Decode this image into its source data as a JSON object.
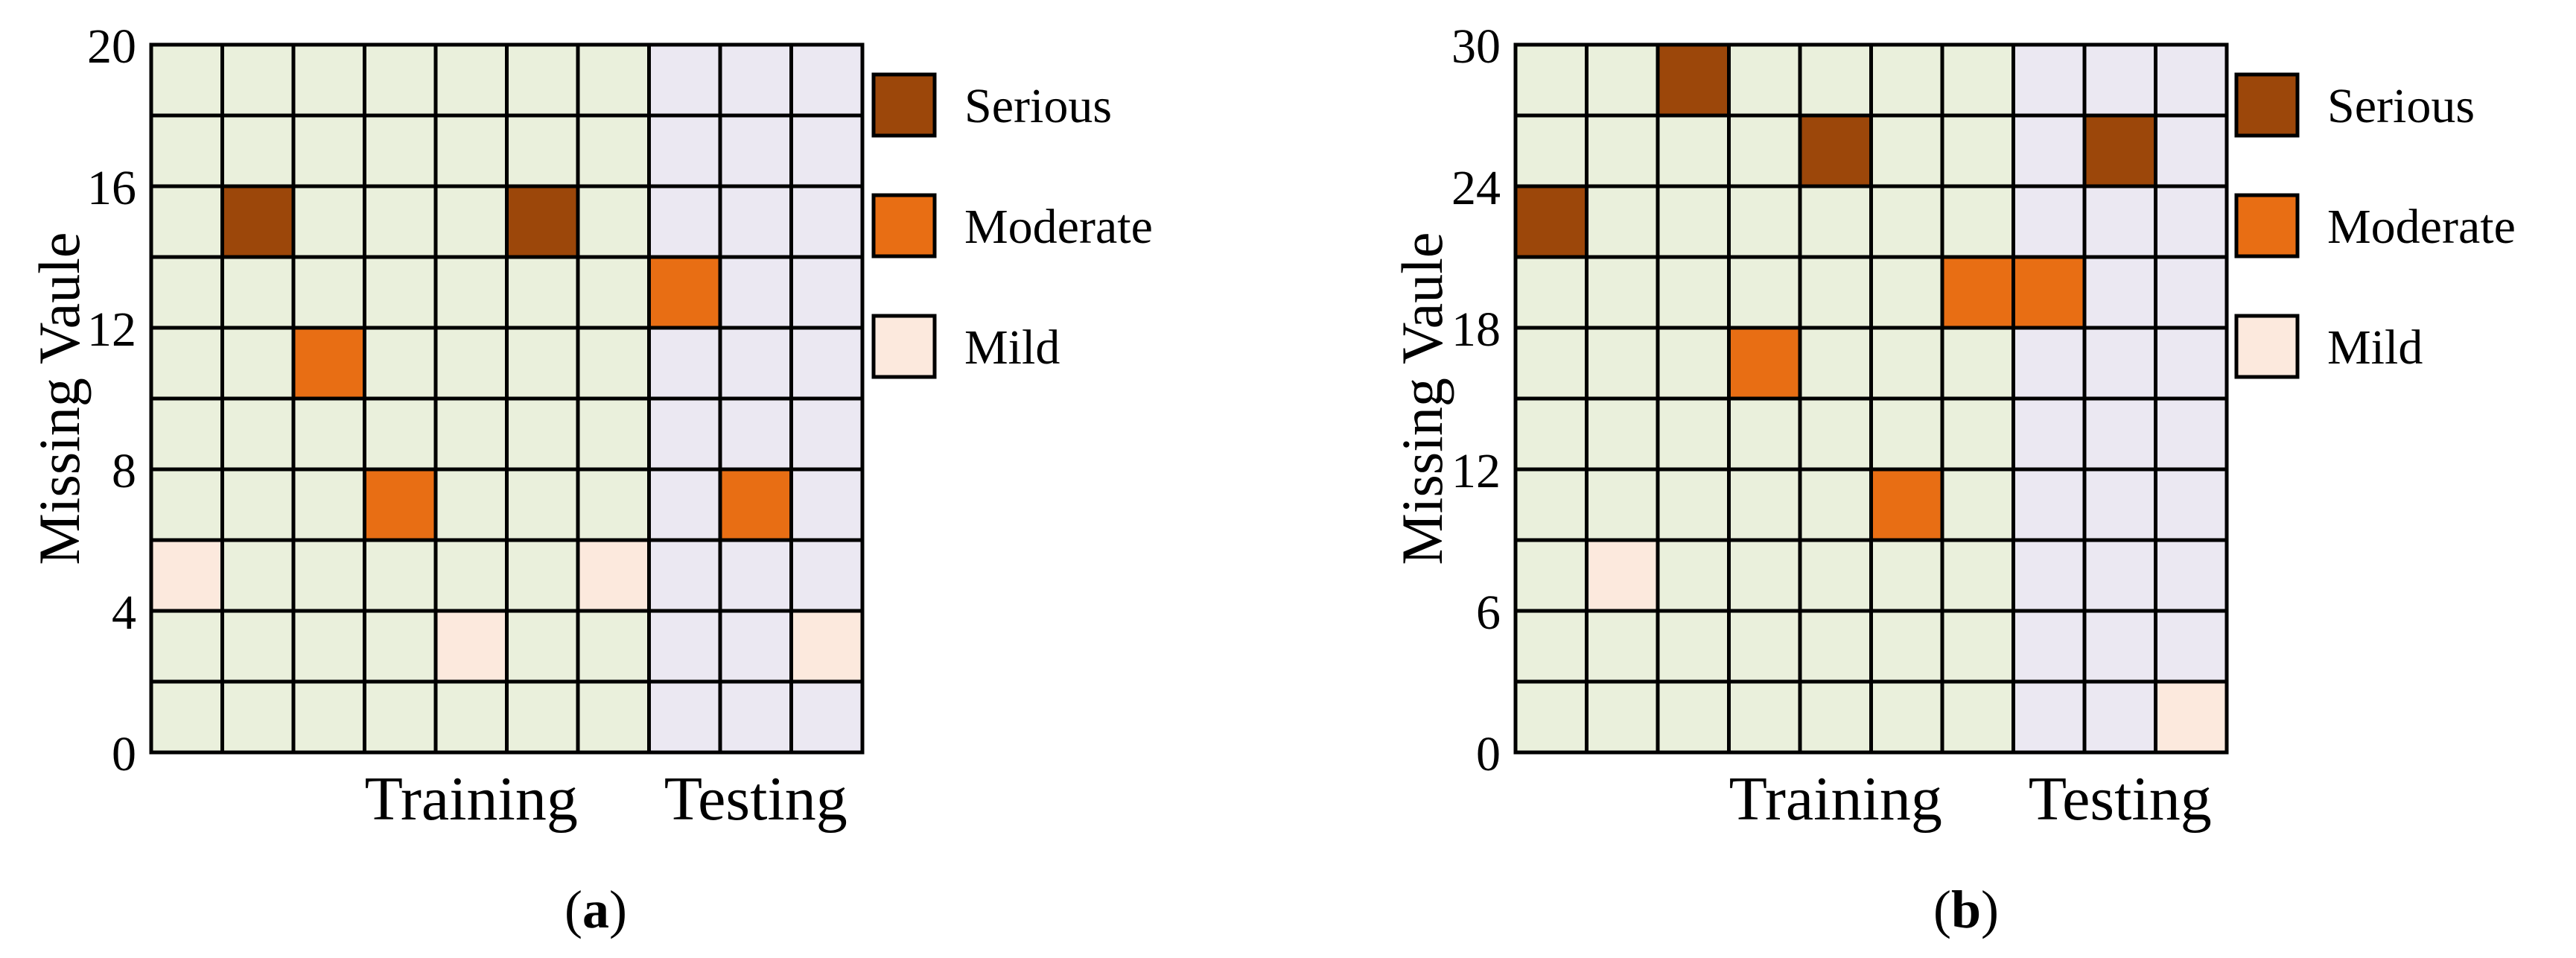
{
  "figure": {
    "panel_labels": [
      "a",
      "b"
    ]
  },
  "colors": {
    "training_cell": "#eaf0dc",
    "testing_cell": "#ebe8f2",
    "grid_line": "#000000",
    "serious": "#9c470a",
    "moderate": "#e86e14",
    "mild": "#fce9dd"
  },
  "chart_data": [
    {
      "type": "heatmap",
      "panel": "a",
      "ylabel": "Missing Vaule",
      "xlabel": "",
      "group_labels": [
        "Training",
        "Testing"
      ],
      "yticks": [
        0,
        4,
        8,
        12,
        16,
        20
      ],
      "ylim": [
        0,
        20
      ],
      "grid": {
        "columns": 10,
        "rows": 10,
        "training_columns": 7,
        "testing_columns": 3
      },
      "legend": {
        "placement": "right",
        "entries": [
          {
            "name": "Serious",
            "level": "serious"
          },
          {
            "name": "Moderate",
            "level": "moderate"
          },
          {
            "name": "Mild",
            "level": "mild"
          }
        ]
      },
      "highlighted_cells": [
        {
          "col": 1,
          "row": 7,
          "level": "serious"
        },
        {
          "col": 5,
          "row": 7,
          "level": "serious"
        },
        {
          "col": 7,
          "row": 6,
          "level": "moderate"
        },
        {
          "col": 2,
          "row": 5,
          "level": "moderate"
        },
        {
          "col": 3,
          "row": 3,
          "level": "moderate"
        },
        {
          "col": 8,
          "row": 3,
          "level": "moderate"
        },
        {
          "col": 0,
          "row": 2,
          "level": "mild"
        },
        {
          "col": 6,
          "row": 2,
          "level": "mild"
        },
        {
          "col": 4,
          "row": 1,
          "level": "mild"
        },
        {
          "col": 9,
          "row": 1,
          "level": "mild"
        }
      ]
    },
    {
      "type": "heatmap",
      "panel": "b",
      "ylabel": "Missing Vaule",
      "xlabel": "",
      "group_labels": [
        "Training",
        "Testing"
      ],
      "yticks": [
        0,
        6,
        12,
        18,
        24,
        30
      ],
      "ylim": [
        0,
        30
      ],
      "grid": {
        "columns": 10,
        "rows": 10,
        "training_columns": 7,
        "testing_columns": 3
      },
      "legend": {
        "placement": "right",
        "entries": [
          {
            "name": "Serious",
            "level": "serious"
          },
          {
            "name": "Moderate",
            "level": "moderate"
          },
          {
            "name": "Mild",
            "level": "mild"
          }
        ]
      },
      "highlighted_cells": [
        {
          "col": 2,
          "row": 9,
          "level": "serious"
        },
        {
          "col": 4,
          "row": 8,
          "level": "serious"
        },
        {
          "col": 8,
          "row": 8,
          "level": "serious"
        },
        {
          "col": 0,
          "row": 7,
          "level": "serious"
        },
        {
          "col": 6,
          "row": 6,
          "level": "moderate"
        },
        {
          "col": 7,
          "row": 6,
          "level": "moderate"
        },
        {
          "col": 3,
          "row": 5,
          "level": "moderate"
        },
        {
          "col": 5,
          "row": 3,
          "level": "moderate"
        },
        {
          "col": 1,
          "row": 2,
          "level": "mild"
        },
        {
          "col": 9,
          "row": 0,
          "level": "mild"
        }
      ]
    }
  ]
}
